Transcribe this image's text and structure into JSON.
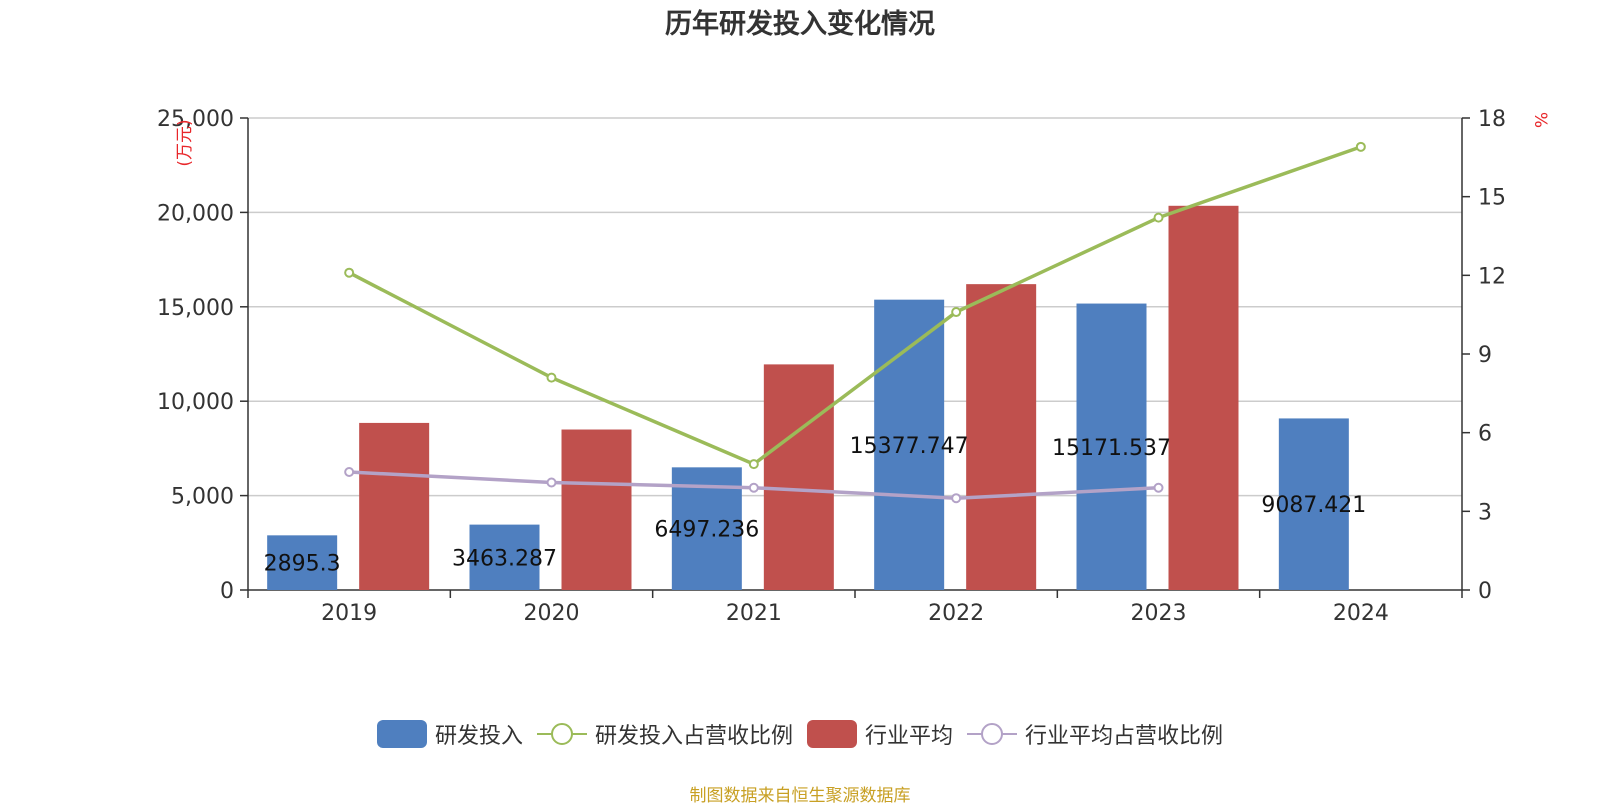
{
  "chart_data": {
    "type": "bar",
    "title": "历年研发投入变化情况",
    "categories": [
      "2019",
      "2020",
      "2021",
      "2022",
      "2023",
      "2024"
    ],
    "y_left": {
      "unit": "万元",
      "ylim": [
        0,
        25000
      ],
      "ticks": [
        "0",
        "5,000",
        "10,000",
        "15,000",
        "20,000",
        "25,000"
      ],
      "tick_values": [
        0,
        5000,
        10000,
        15000,
        20000,
        25000
      ]
    },
    "y_right": {
      "unit": "%",
      "ylim": [
        0,
        18
      ],
      "ticks": [
        "0",
        "3",
        "6",
        "9",
        "12",
        "15",
        "18"
      ],
      "tick_values": [
        0,
        3,
        6,
        9,
        12,
        15,
        18
      ]
    },
    "series": [
      {
        "name": "研发投入",
        "kind": "bar",
        "axis": "left",
        "color": "#4f7fbf",
        "values": [
          2895.3,
          3463.287,
          6497.236,
          15377.747,
          15171.537,
          9087.421
        ],
        "labels": [
          "2895.3",
          "3463.287",
          "6497.236",
          "15377.747",
          "15171.537",
          "9087.421"
        ]
      },
      {
        "name": "研发投入占营收比例",
        "kind": "line",
        "axis": "right",
        "color": "#9bbb59",
        "values": [
          12.1,
          8.1,
          4.8,
          10.6,
          14.2,
          16.9
        ]
      },
      {
        "name": "行业平均",
        "kind": "bar",
        "axis": "left",
        "color": "#c0504d",
        "values": [
          8850,
          8500,
          11950,
          16200,
          20350,
          null
        ]
      },
      {
        "name": "行业平均占营收比例",
        "kind": "line",
        "axis": "right",
        "color": "#b3a2c7",
        "values": [
          4.5,
          4.1,
          3.9,
          3.5,
          3.9,
          null
        ]
      }
    ],
    "grid": true,
    "legend_position": "bottom"
  },
  "source_note": "制图数据来自恒生聚源数据库"
}
